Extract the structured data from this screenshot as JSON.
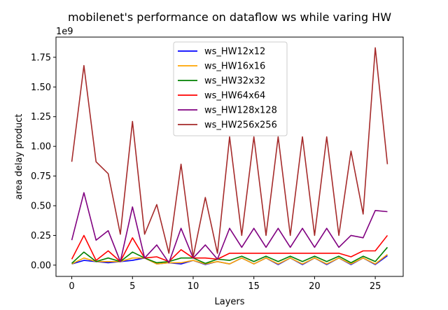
{
  "chart_data": {
    "type": "line",
    "title": "mobilenet's performance on dataflow ws while varing HW",
    "xlabel": "Layers",
    "ylabel": "area delay product",
    "y_multiplier_label": "1e9",
    "xlim": [
      -1.3,
      27.3
    ],
    "ylim": [
      -0.095,
      1.92
    ],
    "xticks": [
      0,
      5,
      10,
      15,
      20,
      25
    ],
    "yticks": [
      0.0,
      0.25,
      0.5,
      0.75,
      1.0,
      1.25,
      1.5,
      1.75
    ],
    "ytick_labels": [
      "0.00",
      "0.25",
      "0.50",
      "0.75",
      "1.00",
      "1.25",
      "1.50",
      "1.75"
    ],
    "legend_position": "upper center",
    "x": [
      0,
      1,
      2,
      3,
      4,
      5,
      6,
      7,
      8,
      9,
      10,
      11,
      12,
      13,
      14,
      15,
      16,
      17,
      18,
      19,
      20,
      21,
      22,
      23,
      24,
      25,
      26
    ],
    "series": [
      {
        "name": "ws_HW12x12",
        "color": "#0000ff",
        "values": [
          0.01,
          0.04,
          0.03,
          0.02,
          0.03,
          0.04,
          0.06,
          0.01,
          0.02,
          0.01,
          0.04,
          0.005,
          0.03,
          0.01,
          0.06,
          0.01,
          0.06,
          0.005,
          0.06,
          0.005,
          0.06,
          0.005,
          0.06,
          0.005,
          0.06,
          0.005,
          0.08
        ]
      },
      {
        "name": "ws_HW16x16",
        "color": "#ffa500",
        "values": [
          0.01,
          0.06,
          0.03,
          0.03,
          0.03,
          0.06,
          0.06,
          0.01,
          0.02,
          0.02,
          0.04,
          0.01,
          0.03,
          0.01,
          0.06,
          0.01,
          0.06,
          0.01,
          0.06,
          0.01,
          0.06,
          0.01,
          0.06,
          0.01,
          0.06,
          0.01,
          0.09
        ]
      },
      {
        "name": "ws_HW32x32",
        "color": "#008000",
        "values": [
          0.015,
          0.11,
          0.03,
          0.06,
          0.03,
          0.11,
          0.06,
          0.02,
          0.03,
          0.06,
          0.06,
          0.015,
          0.05,
          0.04,
          0.075,
          0.03,
          0.075,
          0.03,
          0.075,
          0.03,
          0.075,
          0.03,
          0.075,
          0.02,
          0.075,
          0.03,
          0.15
        ]
      },
      {
        "name": "ws_HW64x64",
        "color": "#ff0000",
        "values": [
          0.05,
          0.25,
          0.04,
          0.12,
          0.03,
          0.23,
          0.06,
          0.07,
          0.03,
          0.13,
          0.06,
          0.06,
          0.05,
          0.1,
          0.1,
          0.1,
          0.1,
          0.1,
          0.1,
          0.1,
          0.1,
          0.1,
          0.1,
          0.07,
          0.12,
          0.12,
          0.25
        ]
      },
      {
        "name": "ws_HW128x128",
        "color": "#800080",
        "values": [
          0.21,
          0.61,
          0.21,
          0.29,
          0.03,
          0.49,
          0.06,
          0.17,
          0.02,
          0.31,
          0.06,
          0.17,
          0.05,
          0.31,
          0.15,
          0.31,
          0.15,
          0.31,
          0.15,
          0.31,
          0.15,
          0.31,
          0.15,
          0.25,
          0.23,
          0.46,
          0.45
        ]
      },
      {
        "name": "ws_HW256x256",
        "color": "#a52a2a",
        "values": [
          0.87,
          1.68,
          0.87,
          0.77,
          0.26,
          1.21,
          0.26,
          0.51,
          0.1,
          0.85,
          0.07,
          0.57,
          0.1,
          1.08,
          0.25,
          1.08,
          0.25,
          1.08,
          0.25,
          1.08,
          0.25,
          1.08,
          0.25,
          0.96,
          0.43,
          1.83,
          0.85
        ]
      }
    ]
  }
}
